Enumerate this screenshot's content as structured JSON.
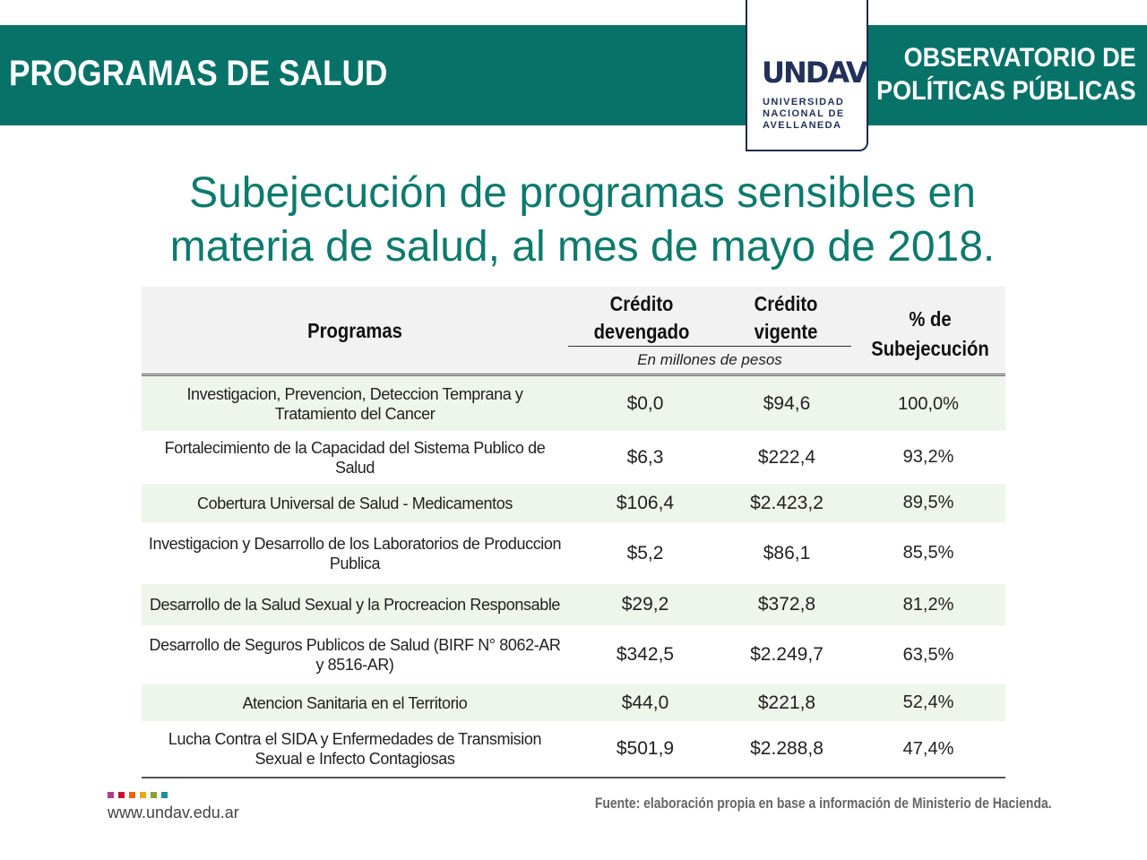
{
  "header": {
    "section_title": "PROGRAMAS DE SALUD",
    "observatory_line1": "OBSERVATORIO DE",
    "observatory_line2": "POLÍTICAS PÚBLICAS",
    "logo": {
      "mark": "UNDAV",
      "line1": "UNIVERSIDAD",
      "line2": "NACIONAL DE",
      "line3": "AVELLANEDA"
    }
  },
  "title_line1": "Subejecución de programas sensibles en",
  "title_line2": "materia de salud, al mes de mayo de 2018.",
  "table": {
    "col_programas": "Programas",
    "col_devengado_1": "Crédito",
    "col_devengado_2": "devengado",
    "col_vigente_1": "Crédito",
    "col_vigente_2": "vigente",
    "col_pct_1": "% de",
    "col_pct_2": "Subejecución",
    "units": "En millones de pesos",
    "rows": [
      {
        "programa": "Investigacion, Prevencion, Deteccion Temprana y Tratamiento del Cancer",
        "devengado": "$0,0",
        "vigente": "$94,6",
        "pct": "100,0%"
      },
      {
        "programa": "Fortalecimiento de la Capacidad del Sistema Publico de Salud",
        "devengado": "$6,3",
        "vigente": "$222,4",
        "pct": "93,2%"
      },
      {
        "programa": "Cobertura Universal de Salud - Medicamentos",
        "devengado": "$106,4",
        "vigente": "$2.423,2",
        "pct": "89,5%"
      },
      {
        "programa": "Investigacion y Desarrollo de los Laboratorios de Produccion Publica",
        "devengado": "$5,2",
        "vigente": "$86,1",
        "pct": "85,5%"
      },
      {
        "programa": "Desarrollo de la Salud Sexual y la Procreacion Responsable",
        "devengado": "$29,2",
        "vigente": "$372,8",
        "pct": "81,2%"
      },
      {
        "programa": "Desarrollo de Seguros Publicos de Salud (BIRF N° 8062-AR y 8516-AR)",
        "devengado": "$342,5",
        "vigente": "$2.249,7",
        "pct": "63,5%"
      },
      {
        "programa": "Atencion Sanitaria en el Territorio",
        "devengado": "$44,0",
        "vigente": "$221,8",
        "pct": "52,4%"
      },
      {
        "programa": "Lucha Contra el SIDA y Enfermedades de Transmision Sexual e Infecto Contagiosas",
        "devengado": "$501,9",
        "vigente": "$2.288,8",
        "pct": "47,4%"
      }
    ]
  },
  "footer": {
    "url": "www.undav.edu.ar",
    "source": "Fuente: elaboración propia en base a información de Ministerio de Hacienda."
  },
  "colors": {
    "brand": "#077268",
    "title": "#0c7a6d",
    "row_highlight": "#eef5ea",
    "logo_navy": "#22315b"
  }
}
